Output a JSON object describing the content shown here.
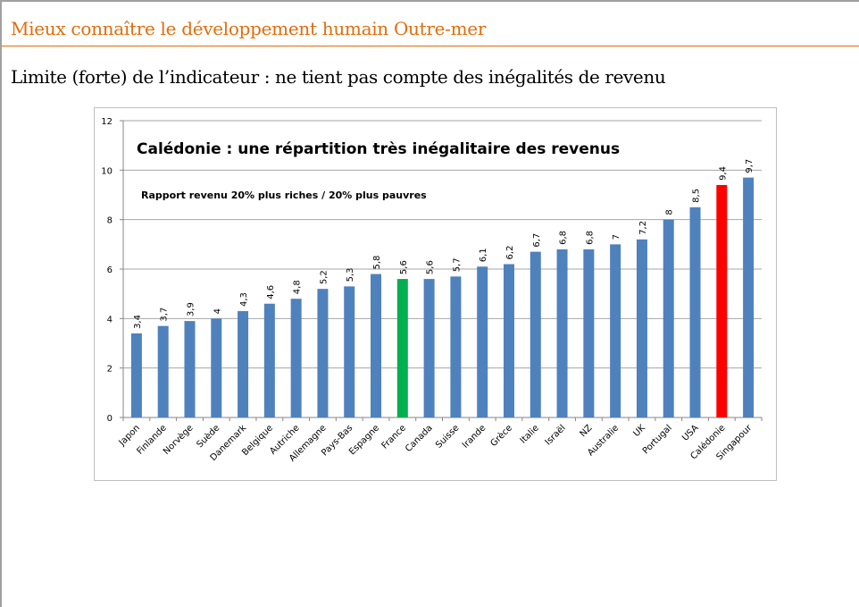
{
  "slide": {
    "header": "Mieux connaître le développement humain Outre-mer",
    "subtitle": "Limite (forte) de l’indicateur : ne tient pas compte des inégalités de revenu"
  },
  "chart_data": {
    "type": "bar",
    "title": "Calédonie : une répartition très inégalitaire des revenus",
    "subtitle": "Rapport revenu 20% plus riches / 20% plus pauvres",
    "xlabel": "",
    "ylabel": "",
    "ylim": [
      0,
      12
    ],
    "yticks": [
      0,
      2,
      4,
      6,
      8,
      10,
      12
    ],
    "grid": true,
    "legend": "none",
    "categories": [
      "Japon",
      "Finlande",
      "Norvège",
      "Suède",
      "Danemark",
      "Belgique",
      "Autriche",
      "Allemagne",
      "Pays-Bas",
      "Espagne",
      "France",
      "Canada",
      "Suisse",
      "Irande",
      "Grèce",
      "Italie",
      "Israël",
      "NZ",
      "Australie",
      "UK",
      "Portugal",
      "USA",
      "Calédonie",
      "Singapour"
    ],
    "values": [
      3.4,
      3.7,
      3.9,
      4,
      4.3,
      4.6,
      4.8,
      5.2,
      5.3,
      5.8,
      5.6,
      5.6,
      5.7,
      6.1,
      6.2,
      6.7,
      6.8,
      6.8,
      7,
      7.2,
      8,
      8.5,
      9.4,
      9.7
    ],
    "data_labels": [
      "3,4",
      "3,7",
      "3,9",
      "4",
      "4,3",
      "4,6",
      "4,8",
      "5,2",
      "5,3",
      "5,8",
      "5,6",
      "5,6",
      "5,7",
      "6,1",
      "6,2",
      "6,7",
      "6,8",
      "6,8",
      "7",
      "7,2",
      "8",
      "8,5",
      "9,4",
      "9,7"
    ],
    "colors": {
      "default": "#4f81bd",
      "France": "#00b050",
      "Calédonie": "#ff0000",
      "grid": "#a6a6a6"
    }
  }
}
